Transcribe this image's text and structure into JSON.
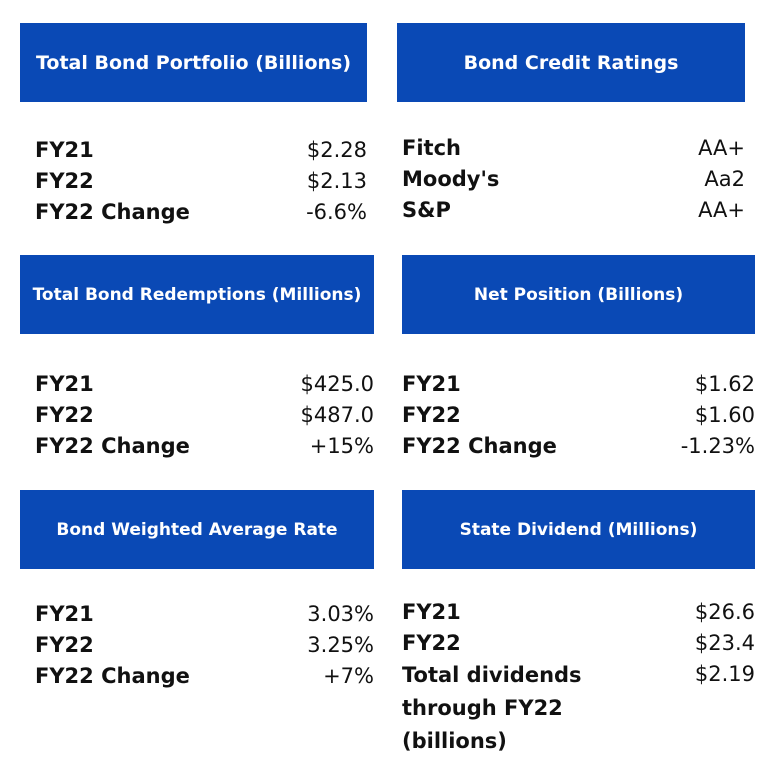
{
  "colors": {
    "header_bg": "#0a49b5",
    "header_text": "#ffffff",
    "body_text": "#111111"
  },
  "panels": {
    "bond_portfolio": {
      "title": "Total Bond Portfolio (Billions)",
      "rows": [
        {
          "label": "FY21",
          "value": "$2.28"
        },
        {
          "label": "FY22",
          "value": "$2.13"
        },
        {
          "label": "FY22 Change",
          "value": "-6.6%"
        }
      ]
    },
    "credit_ratings": {
      "title": "Bond Credit Ratings",
      "rows": [
        {
          "label": "Fitch",
          "value": "AA+"
        },
        {
          "label": "Moody's",
          "value": "Aa2"
        },
        {
          "label": "S&P",
          "value": "AA+"
        }
      ]
    },
    "bond_redemptions": {
      "title": "Total Bond Redemptions (Millions)",
      "rows": [
        {
          "label": "FY21",
          "value": "$425.0"
        },
        {
          "label": "FY22",
          "value": "$487.0"
        },
        {
          "label": "FY22 Change",
          "value": "+15%"
        }
      ]
    },
    "net_position": {
      "title": "Net Position (Billions)",
      "rows": [
        {
          "label": "FY21",
          "value": "$1.62"
        },
        {
          "label": "FY22",
          "value": "$1.60"
        },
        {
          "label": "FY22 Change",
          "value": "-1.23%"
        }
      ]
    },
    "weighted_rate": {
      "title": "Bond Weighted Average Rate",
      "rows": [
        {
          "label": "FY21",
          "value": "3.03%"
        },
        {
          "label": "FY22",
          "value": "3.25%"
        },
        {
          "label": "FY22 Change",
          "value": "+7%"
        }
      ]
    },
    "state_dividend": {
      "title": "State Dividend (Millions)",
      "rows": [
        {
          "label": "FY21",
          "value": "$26.6"
        },
        {
          "label": "FY22",
          "value": "$23.4"
        },
        {
          "label": "Total dividends through FY22 (billions)",
          "value": "$2.19"
        }
      ]
    }
  }
}
